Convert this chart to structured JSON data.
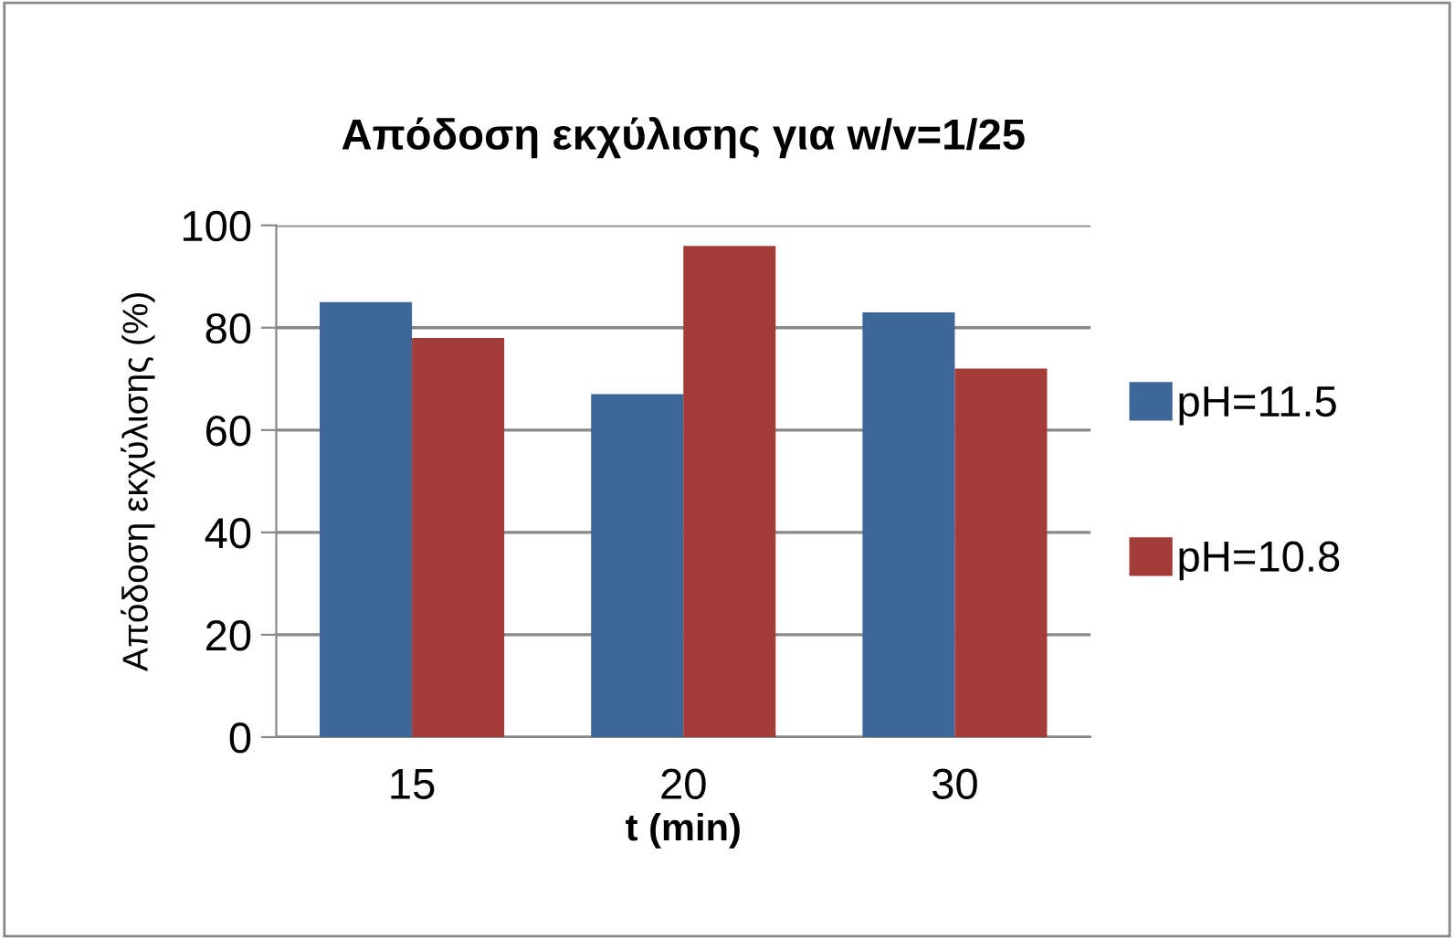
{
  "chart_data": {
    "type": "bar",
    "title": "Απόδοση εκχύλισης για w/v=1/25",
    "xlabel": "t (min)",
    "ylabel": "Απόδοση εκχύλισης (%)",
    "categories": [
      "15",
      "20",
      "30"
    ],
    "series": [
      {
        "name": "pH=11.5",
        "color": "#3d6699",
        "values": [
          85,
          67,
          83
        ]
      },
      {
        "name": "pH=10.8",
        "color": "#a33b38",
        "values": [
          78,
          96,
          72
        ]
      }
    ],
    "ylim": [
      0,
      100
    ],
    "yticks": [
      0,
      20,
      40,
      60,
      80,
      100
    ],
    "grid": "y",
    "legend": "right"
  }
}
